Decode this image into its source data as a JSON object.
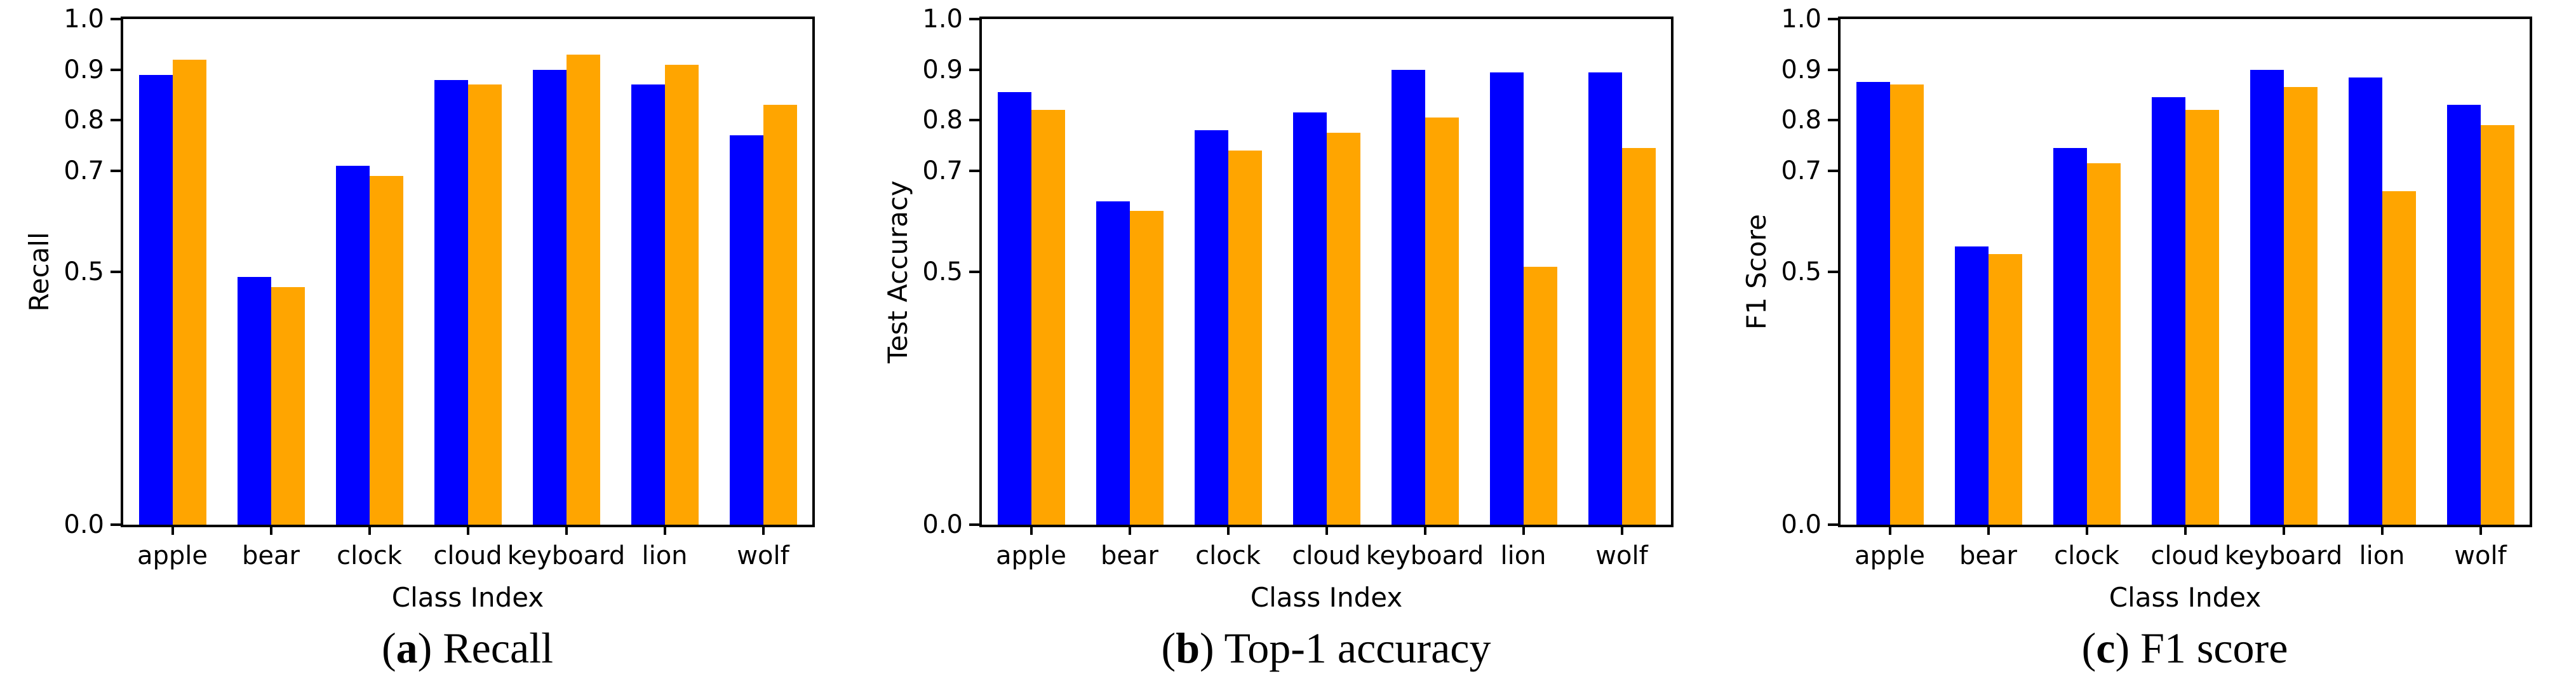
{
  "colors": {
    "series_blue": "#0000FF",
    "series_orange": "#FFA500",
    "axis": "#000000",
    "background": "#FFFFFF"
  },
  "captions": [
    {
      "open": "(",
      "letter": "a",
      "close": ")",
      "text": "Recall"
    },
    {
      "open": "(",
      "letter": "b",
      "close": ")",
      "text": "Top-1 accuracy"
    },
    {
      "open": "(",
      "letter": "c",
      "close": ")",
      "text": "F1 score"
    }
  ],
  "chart_data": [
    {
      "type": "bar",
      "title": "",
      "xlabel": "Class Index",
      "ylabel": "Recall",
      "categories": [
        "apple",
        "bear",
        "clock",
        "cloud",
        "keyboard",
        "lion",
        "wolf"
      ],
      "series": [
        {
          "name": "blue",
          "color": "#0000FF",
          "values": [
            0.89,
            0.49,
            0.71,
            0.88,
            0.9,
            0.87,
            0.77
          ]
        },
        {
          "name": "orange",
          "color": "#FFA500",
          "values": [
            0.92,
            0.47,
            0.69,
            0.87,
            0.93,
            0.91,
            0.83
          ]
        }
      ],
      "ylim": [
        0.0,
        1.0
      ],
      "yticks": [
        0.0,
        0.5,
        0.7,
        0.8,
        0.9,
        1.0
      ],
      "ytick_labels": [
        "0.0",
        "0.5",
        "0.7",
        "0.8",
        "0.9",
        "1.0"
      ],
      "grid": false,
      "legend": "none"
    },
    {
      "type": "bar",
      "title": "",
      "xlabel": "Class Index",
      "ylabel": "Test Accuracy",
      "categories": [
        "apple",
        "bear",
        "clock",
        "cloud",
        "keyboard",
        "lion",
        "wolf"
      ],
      "series": [
        {
          "name": "blue",
          "color": "#0000FF",
          "values": [
            0.855,
            0.64,
            0.78,
            0.815,
            0.9,
            0.895,
            0.895
          ]
        },
        {
          "name": "orange",
          "color": "#FFA500",
          "values": [
            0.82,
            0.62,
            0.74,
            0.775,
            0.805,
            0.51,
            0.745
          ]
        }
      ],
      "ylim": [
        0.0,
        1.0
      ],
      "yticks": [
        0.0,
        0.5,
        0.7,
        0.8,
        0.9,
        1.0
      ],
      "ytick_labels": [
        "0.0",
        "0.5",
        "0.7",
        "0.8",
        "0.9",
        "1.0"
      ],
      "grid": false,
      "legend": "none"
    },
    {
      "type": "bar",
      "title": "",
      "xlabel": "Class Index",
      "ylabel": "F1 Score",
      "categories": [
        "apple",
        "bear",
        "clock",
        "cloud",
        "keyboard",
        "lion",
        "wolf"
      ],
      "series": [
        {
          "name": "blue",
          "color": "#0000FF",
          "values": [
            0.875,
            0.55,
            0.745,
            0.845,
            0.9,
            0.885,
            0.83
          ]
        },
        {
          "name": "orange",
          "color": "#FFA500",
          "values": [
            0.87,
            0.535,
            0.715,
            0.82,
            0.865,
            0.66,
            0.79
          ]
        }
      ],
      "ylim": [
        0.0,
        1.0
      ],
      "yticks": [
        0.0,
        0.5,
        0.7,
        0.8,
        0.9,
        1.0
      ],
      "ytick_labels": [
        "0.0",
        "0.5",
        "0.7",
        "0.8",
        "0.9",
        "1.0"
      ],
      "grid": false,
      "legend": "none"
    }
  ]
}
